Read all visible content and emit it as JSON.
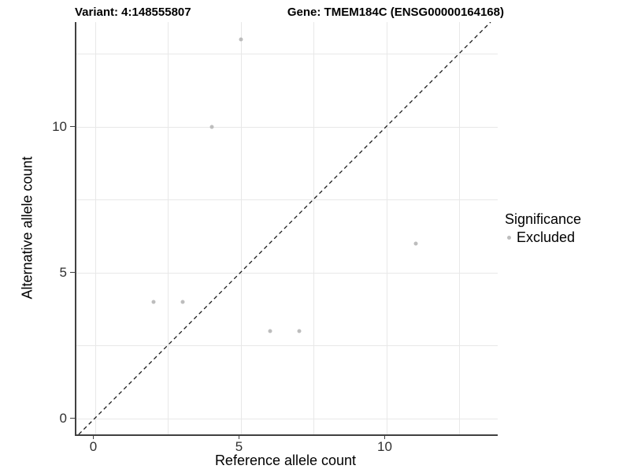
{
  "header": {
    "variant_title": "Variant: 4:148555807",
    "gene_title": "Gene: TMEM184C (ENSG00000164168)"
  },
  "chart_data": {
    "type": "scatter",
    "xlabel": "Reference allele count",
    "ylabel": "Alternative allele count",
    "xlim": [
      -0.65,
      13.8
    ],
    "ylim": [
      -0.6,
      13.6
    ],
    "x_ticks": [
      0,
      5,
      10
    ],
    "y_ticks": [
      0,
      5,
      10
    ],
    "grid": true,
    "grid_values": [
      0,
      2.5,
      5,
      7.5,
      10,
      12.5
    ],
    "reference_line": {
      "style": "dashed",
      "equation": "y = x"
    },
    "series": [
      {
        "name": "Excluded",
        "color": "#bdbdbd",
        "points": [
          {
            "x": 2,
            "y": 4
          },
          {
            "x": 3,
            "y": 4
          },
          {
            "x": 4,
            "y": 10
          },
          {
            "x": 5,
            "y": 13
          },
          {
            "x": 6,
            "y": 3
          },
          {
            "x": 7,
            "y": 3
          },
          {
            "x": 11,
            "y": 6
          }
        ]
      }
    ],
    "legend": {
      "title": "Significance",
      "position": "right",
      "entries": [
        {
          "label": "Excluded",
          "color": "#bdbdbd"
        }
      ]
    }
  },
  "colors": {
    "point": "#bdbdbd",
    "grid": "#e8e8e8",
    "axis": "#404040",
    "reference_line": "#1a1a1a",
    "background": "#ffffff"
  }
}
